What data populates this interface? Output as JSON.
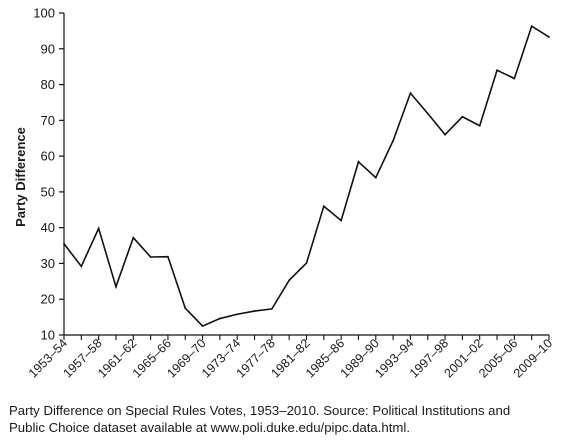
{
  "chart_data": {
    "type": "line",
    "ylabel": "Party Difference",
    "xlabel": "",
    "ylim": [
      10,
      100
    ],
    "y_ticks": [
      10,
      20,
      30,
      40,
      50,
      60,
      70,
      80,
      90,
      100
    ],
    "x": [
      "1953–54",
      "1955–56",
      "1957–58",
      "1959–60",
      "1961–62",
      "1963–64",
      "1965–66",
      "1967–68",
      "1969–70",
      "1971–72",
      "1973–74",
      "1975–76",
      "1977–78",
      "1979–80",
      "1981–82",
      "1983–84",
      "1985–86",
      "1987–88",
      "1989–90",
      "1991–92",
      "1993–94",
      "1995–96",
      "1997–98",
      "1999–00",
      "2001–02",
      "2003–04",
      "2005–06",
      "2007–08",
      "2009–10"
    ],
    "x_tick_labels": [
      "1953–54",
      "1957–58",
      "1961–62",
      "1965–66",
      "1969–70",
      "1973–74",
      "1977–78",
      "1981–82",
      "1985–86",
      "1989–90",
      "1993–94",
      "1997–98",
      "2001–02",
      "2005–06",
      "2009–10"
    ],
    "values": [
      35.5,
      29.2,
      39.8,
      23.5,
      37.2,
      31.8,
      31.9,
      17.5,
      12.5,
      14.6,
      15.8,
      16.7,
      17.3,
      25.3,
      30.1,
      46.0,
      42.0,
      58.4,
      54.0,
      64.3,
      77.6,
      71.9,
      66.0,
      71.0,
      68.5,
      84.0,
      81.7,
      96.3,
      93.3
    ],
    "grid": false,
    "line_color": "#111111"
  },
  "caption": {
    "line1": "Party Difference on Special Rules Votes, 1953–2010. Source: Political Institutions and",
    "line2": "Public Choice dataset available at www.poli.duke.edu/pipc.data.html."
  }
}
